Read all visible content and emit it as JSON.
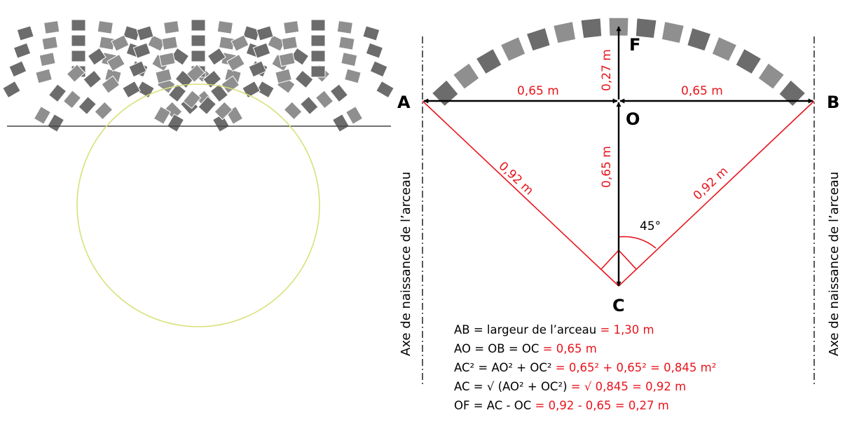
{
  "colors": {
    "red": "#e8141c",
    "black": "#000000",
    "paver": "#8f8f8f",
    "paver_dark": "#6c6c6c",
    "circle": "#d9e07a",
    "ground": "#444444"
  },
  "points": {
    "a": "A",
    "b": "B",
    "o": "O",
    "c": "C",
    "f": "F"
  },
  "measures": {
    "ao": "0,65 m",
    "ob": "0,65 m",
    "of": "0,27 m",
    "oc": "0,65 m",
    "ac": "0,92 m",
    "bc": "0,92 m"
  },
  "angle_label": "45°",
  "axis_label": "Axe de naissance de l’arceau",
  "formulas": [
    {
      "black": "AB = largeur de l’arceau",
      "red": " = 1,30 m"
    },
    {
      "black": "AO = OB = OC",
      "red": " = 0,65 m"
    },
    {
      "black": "AC² = AO² + OC²",
      "red": " = 0,65² + 0,65² = 0,845 m²"
    },
    {
      "black": "AC = √ (AO² + OC²)",
      "red": " = √ 0,845 = 0,92 m"
    },
    {
      "black": "OF = AC - OC",
      "red": " = 0,92 - 0,65 = 0,27 m"
    }
  ]
}
